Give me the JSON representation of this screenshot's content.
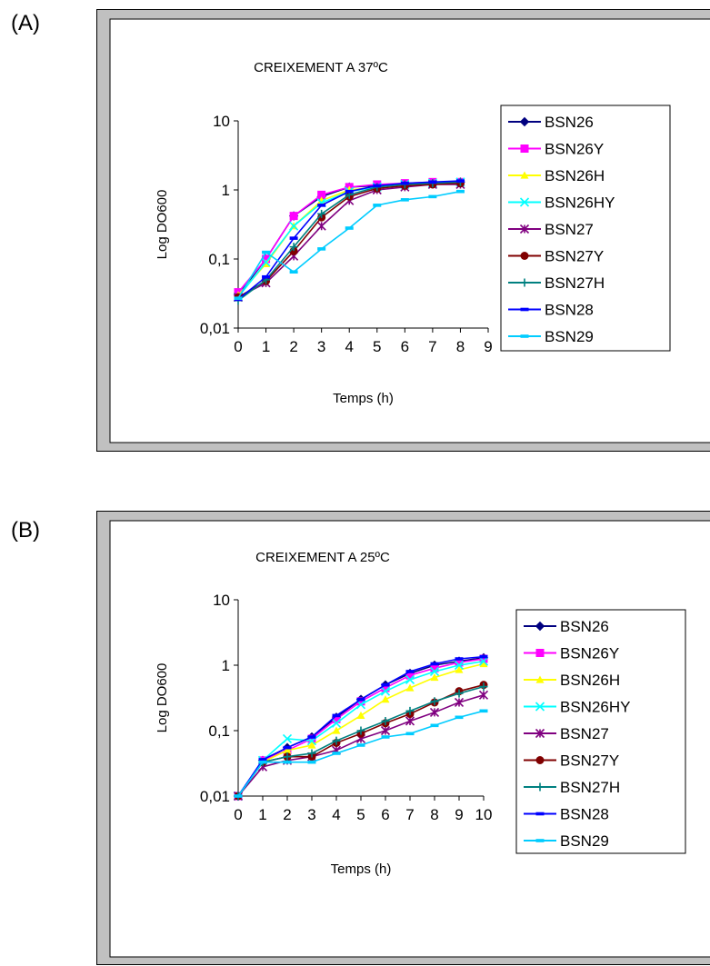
{
  "panels": [
    {
      "id": "a",
      "label": "(A)"
    },
    {
      "id": "b",
      "label": "(B)"
    }
  ],
  "chart_data": [
    {
      "type": "line",
      "title": "CREIXEMENT A 37ºC",
      "xlabel": "Temps (h)",
      "ylabel": "Log DO600",
      "yscale": "log",
      "xlim": [
        0,
        9
      ],
      "ylim": [
        0.01,
        10
      ],
      "xticks": [
        "0",
        "1",
        "2",
        "3",
        "4",
        "5",
        "6",
        "7",
        "8",
        "9"
      ],
      "yticks": [
        "0,01",
        "0,1",
        "1",
        "10"
      ],
      "legend_position": "right",
      "x": [
        0,
        1,
        2,
        3,
        4,
        5,
        6,
        7,
        8,
        9
      ],
      "series": [
        {
          "name": "BSN26",
          "color": "#000080",
          "marker": "diamond",
          "values": [
            0.03,
            0.1,
            0.42,
            0.8,
            1.1,
            1.15,
            1.2,
            1.25,
            1.3,
            null
          ]
        },
        {
          "name": "BSN26Y",
          "color": "#ff00ff",
          "marker": "square",
          "values": [
            0.033,
            0.1,
            0.42,
            0.85,
            1.1,
            1.2,
            1.25,
            1.3,
            1.3,
            null
          ]
        },
        {
          "name": "BSN26H",
          "color": "#ffff00",
          "marker": "triangle",
          "values": [
            0.03,
            0.085,
            0.3,
            0.7,
            1.0,
            1.1,
            1.2,
            1.25,
            1.3,
            null
          ]
        },
        {
          "name": "BSN26HY",
          "color": "#00ffff",
          "marker": "x",
          "values": [
            0.028,
            0.09,
            0.3,
            0.65,
            0.95,
            1.1,
            1.2,
            1.25,
            1.3,
            null
          ]
        },
        {
          "name": "BSN27",
          "color": "#800080",
          "marker": "star",
          "values": [
            0.028,
            0.045,
            0.11,
            0.3,
            0.7,
            1.0,
            1.1,
            1.2,
            1.2,
            null
          ]
        },
        {
          "name": "BSN27Y",
          "color": "#800000",
          "marker": "circle",
          "values": [
            0.028,
            0.048,
            0.13,
            0.4,
            0.8,
            1.05,
            1.15,
            1.2,
            1.25,
            null
          ]
        },
        {
          "name": "BSN27H",
          "color": "#008080",
          "marker": "plus",
          "values": [
            0.025,
            0.05,
            0.15,
            0.45,
            0.85,
            1.1,
            1.2,
            1.25,
            1.3,
            null
          ]
        },
        {
          "name": "BSN28",
          "color": "#0000ff",
          "marker": "dash",
          "values": [
            0.026,
            0.055,
            0.2,
            0.6,
            0.95,
            1.15,
            1.25,
            1.3,
            1.35,
            null
          ]
        },
        {
          "name": "BSN29",
          "color": "#00ccff",
          "marker": "dash",
          "values": [
            0.027,
            0.125,
            0.065,
            0.14,
            0.28,
            0.6,
            0.72,
            0.8,
            0.95,
            null
          ]
        }
      ]
    },
    {
      "type": "line",
      "title": "CREIXEMENT A 25ºC",
      "xlabel": "Temps (h)",
      "ylabel": "Log DO600",
      "yscale": "log",
      "xlim": [
        0,
        10
      ],
      "ylim": [
        0.01,
        10
      ],
      "xticks": [
        "0",
        "1",
        "2",
        "3",
        "4",
        "5",
        "6",
        "7",
        "8",
        "9",
        "10"
      ],
      "yticks": [
        "0,01",
        "0,1",
        "1",
        "10"
      ],
      "legend_position": "right",
      "x": [
        0,
        1,
        2,
        3,
        4,
        5,
        6,
        7,
        8,
        9,
        10
      ],
      "series": [
        {
          "name": "BSN26",
          "color": "#000080",
          "marker": "diamond",
          "values": [
            0.01,
            0.035,
            0.055,
            0.08,
            0.16,
            0.3,
            0.5,
            0.75,
            1.0,
            1.15,
            1.3
          ]
        },
        {
          "name": "BSN26Y",
          "color": "#ff00ff",
          "marker": "square",
          "values": [
            0.01,
            0.035,
            0.05,
            0.075,
            0.15,
            0.28,
            0.45,
            0.7,
            0.9,
            1.1,
            1.25
          ]
        },
        {
          "name": "BSN26H",
          "color": "#ffff00",
          "marker": "triangle",
          "values": [
            0.01,
            0.033,
            0.05,
            0.06,
            0.1,
            0.17,
            0.3,
            0.45,
            0.65,
            0.85,
            1.05
          ]
        },
        {
          "name": "BSN26HY",
          "color": "#00ffff",
          "marker": "x",
          "values": [
            0.01,
            0.035,
            0.075,
            0.07,
            0.13,
            0.25,
            0.4,
            0.6,
            0.8,
            1.0,
            1.15
          ]
        },
        {
          "name": "BSN27",
          "color": "#800080",
          "marker": "star",
          "values": [
            0.01,
            0.028,
            0.035,
            0.04,
            0.05,
            0.075,
            0.1,
            0.14,
            0.19,
            0.27,
            0.35
          ]
        },
        {
          "name": "BSN27Y",
          "color": "#800000",
          "marker": "circle",
          "values": [
            0.01,
            0.033,
            0.04,
            0.04,
            0.065,
            0.09,
            0.13,
            0.18,
            0.27,
            0.4,
            0.5
          ]
        },
        {
          "name": "BSN27H",
          "color": "#008080",
          "marker": "plus",
          "values": [
            0.01,
            0.033,
            0.04,
            0.045,
            0.07,
            0.1,
            0.14,
            0.2,
            0.28,
            0.37,
            0.47
          ]
        },
        {
          "name": "BSN28",
          "color": "#0000ff",
          "marker": "dash",
          "values": [
            0.01,
            0.036,
            0.055,
            0.08,
            0.17,
            0.3,
            0.5,
            0.8,
            1.05,
            1.25,
            1.35
          ]
        },
        {
          "name": "BSN29",
          "color": "#00ccff",
          "marker": "dash",
          "values": [
            0.01,
            0.033,
            0.033,
            0.033,
            0.045,
            0.06,
            0.08,
            0.09,
            0.12,
            0.16,
            0.2
          ]
        }
      ]
    }
  ]
}
